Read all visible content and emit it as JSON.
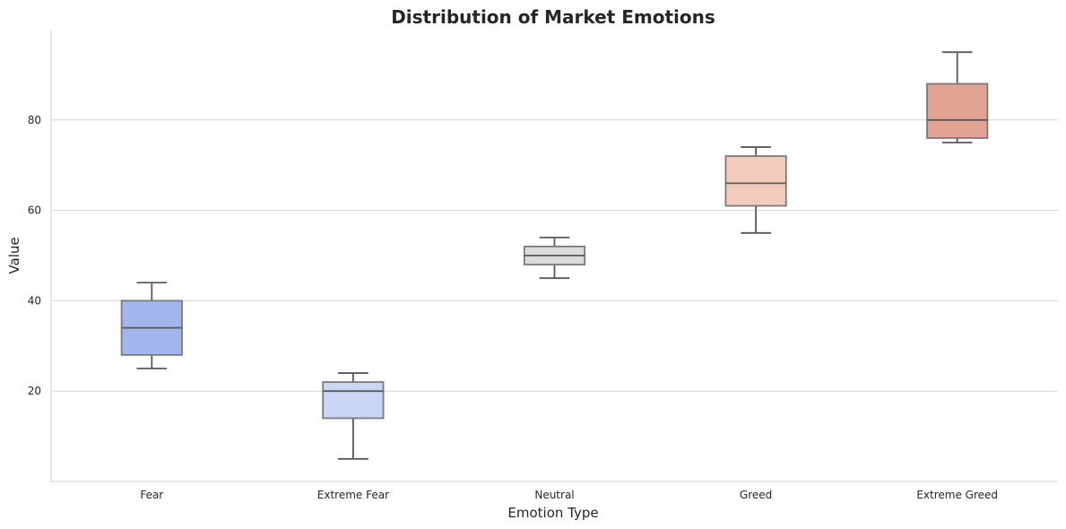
{
  "chart_data": {
    "type": "box",
    "title": "Distribution of Market Emotions",
    "xlabel": "Emotion Type",
    "ylabel": "Value",
    "ylim": [
      0,
      100
    ],
    "yticks": [
      20,
      40,
      60,
      80
    ],
    "grid": true,
    "categories": [
      "Fear",
      "Extreme Fear",
      "Neutral",
      "Greed",
      "Extreme Greed"
    ],
    "boxes": [
      {
        "category": "Fear",
        "whisker_low": 25,
        "q1": 28,
        "median": 34,
        "q3": 40,
        "whisker_high": 44,
        "color": "#a2b5ec"
      },
      {
        "category": "Extreme Fear",
        "whisker_low": 5,
        "q1": 14,
        "median": 20,
        "q3": 22,
        "whisker_high": 24,
        "color": "#c9d7f5"
      },
      {
        "category": "Neutral",
        "whisker_low": 45,
        "q1": 48,
        "median": 50,
        "q3": 52,
        "whisker_high": 54,
        "color": "#dddcdb"
      },
      {
        "category": "Greed",
        "whisker_low": 55,
        "q1": 61,
        "median": 66,
        "q3": 72,
        "whisker_high": 74,
        "color": "#f2cbbd"
      },
      {
        "category": "Extreme Greed",
        "whisker_low": 75,
        "q1": 76,
        "median": 80,
        "q3": 88,
        "whisker_high": 95,
        "color": "#e2a392"
      }
    ],
    "colors": {
      "grid": "#d5d5d5",
      "axis": "#cccccc",
      "line": "#595959"
    }
  }
}
